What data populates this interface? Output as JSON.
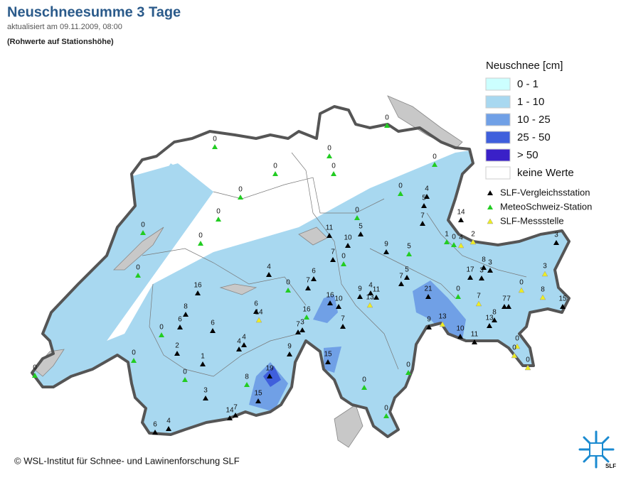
{
  "header": {
    "title": "Neuschneesumme 3 Tage",
    "updated": "aktualisiert am 09.11.2009, 08:00",
    "note": "(Rohwerte auf Stationshöhe)"
  },
  "legend": {
    "title": "Neuschnee [cm]",
    "classes": [
      {
        "label": "0 - 1",
        "color": "#ccffff"
      },
      {
        "label": "1 - 10",
        "color": "#a8d8f0"
      },
      {
        "label": "10 - 25",
        "color": "#70a0e6"
      },
      {
        "label": "25 - 50",
        "color": "#3f5fdc"
      },
      {
        "label": "> 50",
        "color": "#3a20c8"
      },
      {
        "label": "keine Werte",
        "color": "#ffffff"
      }
    ],
    "stations": [
      {
        "label": "SLF-Vergleichsstation",
        "color": "#000000"
      },
      {
        "label": "MeteoSchweiz-Station",
        "color": "#22cc22"
      },
      {
        "label": "SLF-Messstelle",
        "color": "#eeee22"
      }
    ]
  },
  "map": {
    "station_values": [
      0,
      0,
      0,
      0,
      0,
      0,
      0,
      0,
      4,
      5,
      0,
      0,
      0,
      14,
      5,
      7,
      11,
      10,
      9,
      5,
      0,
      1,
      0,
      4,
      2,
      3,
      7,
      0,
      0,
      4,
      8,
      3,
      17,
      3,
      5,
      7,
      3,
      6,
      16,
      0,
      7,
      9,
      4,
      11,
      13,
      16,
      10,
      21,
      0,
      7,
      0,
      8,
      7,
      7,
      15,
      6,
      14,
      8,
      16,
      6,
      6,
      7,
      3,
      7,
      13,
      8,
      9,
      13,
      0,
      10,
      11,
      0,
      0,
      0,
      4,
      4,
      2,
      9,
      0,
      15,
      1,
      0,
      19,
      8,
      0,
      0,
      0,
      3,
      15,
      14,
      7,
      0,
      6,
      4
    ]
  },
  "footer": {
    "copyright": "© WSL-Institut für Schnee- und Lawinenforschung SLF",
    "logo": "SLF"
  }
}
